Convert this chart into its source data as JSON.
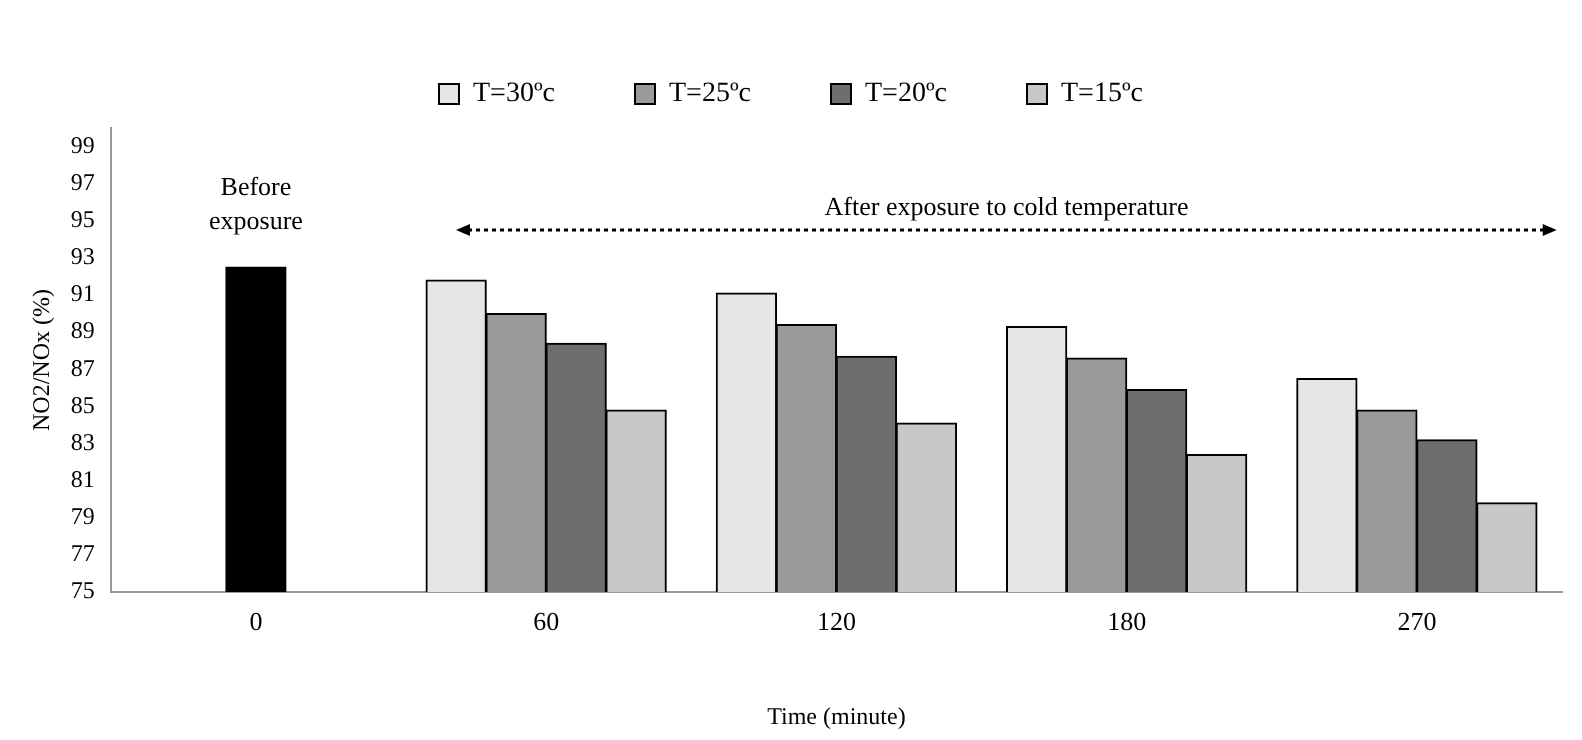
{
  "chart_data": {
    "type": "bar",
    "xlabel": "Time (minute)",
    "ylabel": "NO2/NOx (%)",
    "categories": [
      "0",
      "60",
      "120",
      "180",
      "270"
    ],
    "series": [
      {
        "color": "#000000",
        "values": [
          92.5,
          null,
          null,
          null,
          null
        ]
      },
      {
        "name": "T=30ºc",
        "color": "#e6e6e6",
        "values": [
          null,
          91.8,
          91.1,
          89.3,
          86.5
        ]
      },
      {
        "name": "T=25ºc",
        "color": "#9a9a9a",
        "values": [
          null,
          90.0,
          89.4,
          87.6,
          84.8
        ]
      },
      {
        "name": "T=20ºc",
        "color": "#6e6e6e",
        "values": [
          null,
          88.4,
          87.7,
          85.9,
          83.2
        ]
      },
      {
        "name": "T=15ºc",
        "color": "#c8c8c8",
        "values": [
          null,
          84.8,
          84.1,
          82.4,
          79.8
        ]
      }
    ],
    "ylim": [
      75,
      100
    ],
    "yticks": [
      75,
      77,
      79,
      81,
      83,
      85,
      87,
      89,
      91,
      93,
      95,
      97,
      99
    ],
    "grid": false,
    "legend": "top",
    "annotations": [
      "Before exposure",
      "After exposure to cold temperature"
    ]
  }
}
